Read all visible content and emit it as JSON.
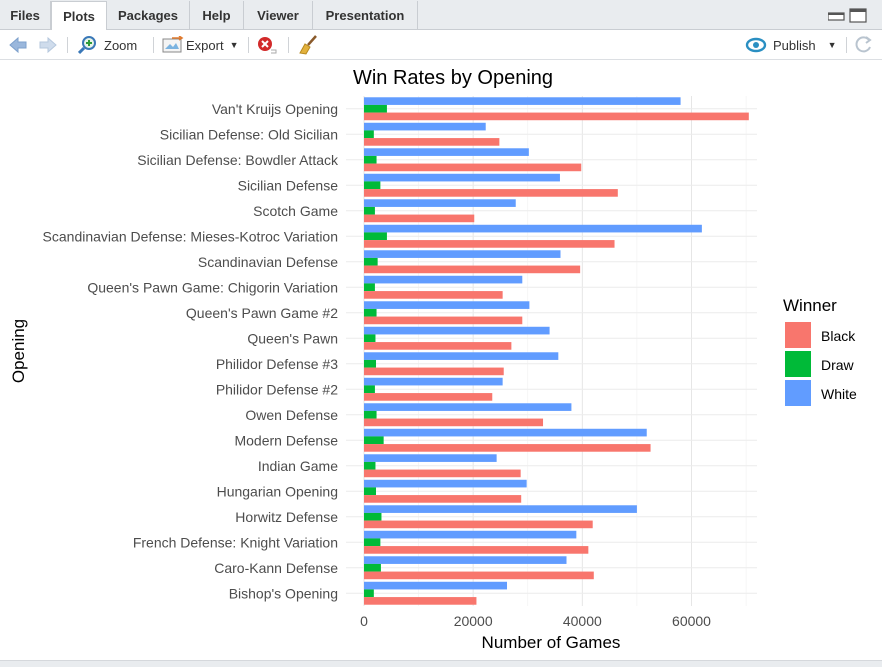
{
  "tabs": [
    {
      "label": "Files",
      "active": false
    },
    {
      "label": "Plots",
      "active": true
    },
    {
      "label": "Packages",
      "active": false
    },
    {
      "label": "Help",
      "active": false
    },
    {
      "label": "Viewer",
      "active": false
    },
    {
      "label": "Presentation",
      "active": false
    }
  ],
  "toolbar": {
    "zoom_label": "Zoom",
    "export_label": "Export",
    "publish_label": "Publish",
    "icons": [
      "back-arrow-icon",
      "forward-arrow-icon",
      "zoom-icon",
      "export-icon",
      "remove-plot-icon",
      "broom-icon",
      "publish-icon",
      "refresh-icon"
    ]
  },
  "chart_data": {
    "type": "bar",
    "orientation": "horizontal",
    "title": "Win Rates by Opening",
    "xlabel": "Number of Games",
    "ylabel": "Opening",
    "xlim": [
      0,
      72000
    ],
    "xticks": [
      0,
      20000,
      40000,
      60000
    ],
    "xtick_labels": [
      "0",
      "20000",
      "40000",
      "60000"
    ],
    "grid": true,
    "legend": {
      "title": "Winner",
      "position": "right"
    },
    "colors": {
      "Black": "#F8766D",
      "Draw": "#00BA38",
      "White": "#619CFF"
    },
    "categories": [
      "Van't Kruijs Opening",
      "Sicilian Defense: Old Sicilian",
      "Sicilian Defense: Bowdler Attack",
      "Sicilian Defense",
      "Scotch Game",
      "Scandinavian Defense: Mieses-Kotroc Variation",
      "Scandinavian Defense",
      "Queen's Pawn Game: Chigorin Variation",
      "Queen's Pawn Game #2",
      "Queen's Pawn",
      "Philidor Defense #3",
      "Philidor Defense #2",
      "Owen Defense",
      "Modern Defense",
      "Indian Game",
      "Hungarian Opening",
      "Horwitz Defense",
      "French Defense: Knight Variation",
      "Caro-Kann Defense",
      "Bishop's Opening"
    ],
    "series": [
      {
        "name": "Black",
        "values": [
          70500,
          24800,
          39800,
          46500,
          20200,
          45900,
          39600,
          25400,
          29000,
          27000,
          25600,
          23500,
          32800,
          52500,
          28700,
          28800,
          41900,
          41100,
          42100,
          20600
        ]
      },
      {
        "name": "Draw",
        "values": [
          4200,
          1800,
          2300,
          3000,
          2000,
          4200,
          2500,
          2000,
          2300,
          2100,
          2200,
          2000,
          2300,
          3600,
          2100,
          2200,
          3200,
          3000,
          3100,
          1800
        ]
      },
      {
        "name": "White",
        "values": [
          58000,
          22300,
          30200,
          35900,
          27800,
          61900,
          36000,
          29000,
          30300,
          34000,
          35600,
          25400,
          38000,
          51800,
          24300,
          29800,
          50000,
          38900,
          37100,
          26200
        ]
      }
    ]
  }
}
